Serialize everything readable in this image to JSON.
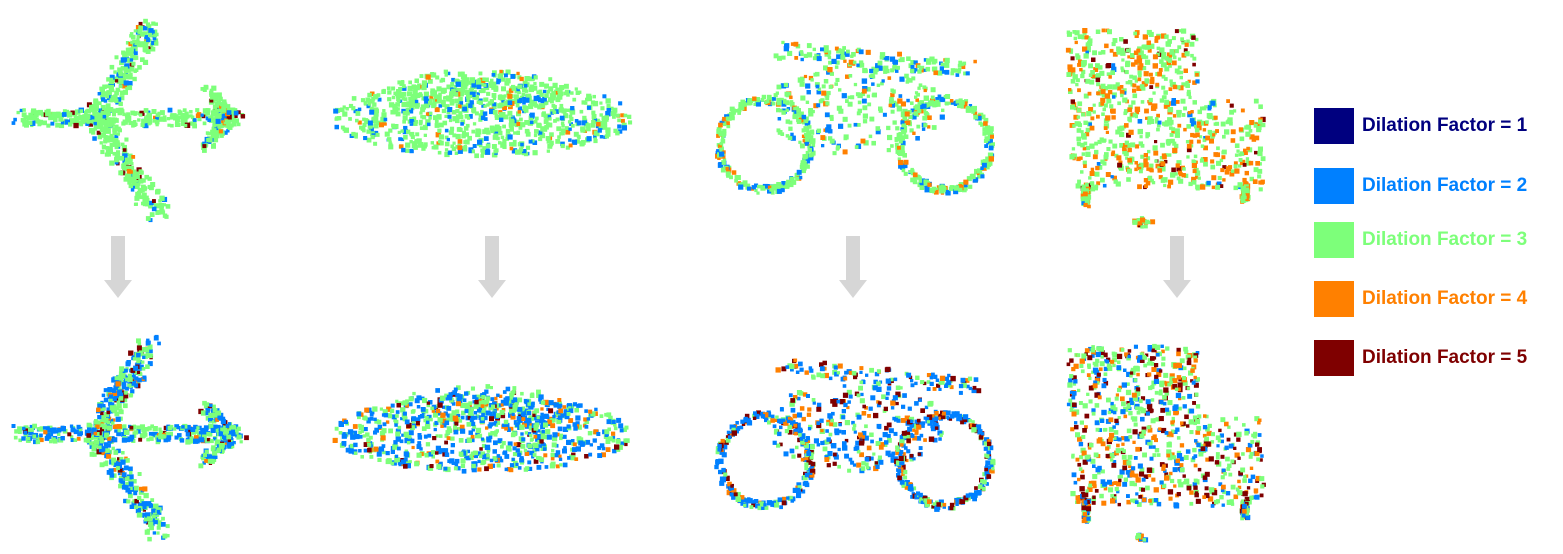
{
  "colors": {
    "factor1": "#00007f",
    "factor2": "#0080ff",
    "factor3": "#7dff7a",
    "factor4": "#ff8000",
    "factor5": "#7f0000",
    "arrow": "#d6d6d6"
  },
  "legend": {
    "items": [
      {
        "label": "Dilation Factor = 1",
        "color": "#00007f"
      },
      {
        "label": "Dilation Factor = 2",
        "color": "#0080ff"
      },
      {
        "label": "Dilation Factor = 3",
        "color": "#7dff7a"
      },
      {
        "label": "Dilation Factor = 4",
        "color": "#ff8000"
      },
      {
        "label": "Dilation Factor = 5",
        "color": "#7f0000"
      }
    ]
  },
  "objects": [
    {
      "name": "airplane",
      "before_mix": {
        "f2": 0.1,
        "f3": 0.84,
        "f4": 0.03,
        "f5": 0.03
      },
      "after_mix": {
        "f2": 0.42,
        "f3": 0.48,
        "f4": 0.05,
        "f5": 0.05
      }
    },
    {
      "name": "car",
      "before_mix": {
        "f2": 0.16,
        "f3": 0.8,
        "f4": 0.04,
        "f5": 0.0
      },
      "after_mix": {
        "f2": 0.45,
        "f3": 0.4,
        "f4": 0.1,
        "f5": 0.05
      }
    },
    {
      "name": "motorbike",
      "before_mix": {
        "f2": 0.18,
        "f3": 0.7,
        "f4": 0.12,
        "f5": 0.0
      },
      "after_mix": {
        "f2": 0.5,
        "f3": 0.2,
        "f4": 0.16,
        "f5": 0.14
      }
    },
    {
      "name": "chair",
      "before_mix": {
        "f2": 0.02,
        "f3": 0.6,
        "f4": 0.33,
        "f5": 0.05
      },
      "after_mix": {
        "f2": 0.22,
        "f3": 0.38,
        "f4": 0.22,
        "f5": 0.18
      }
    }
  ]
}
